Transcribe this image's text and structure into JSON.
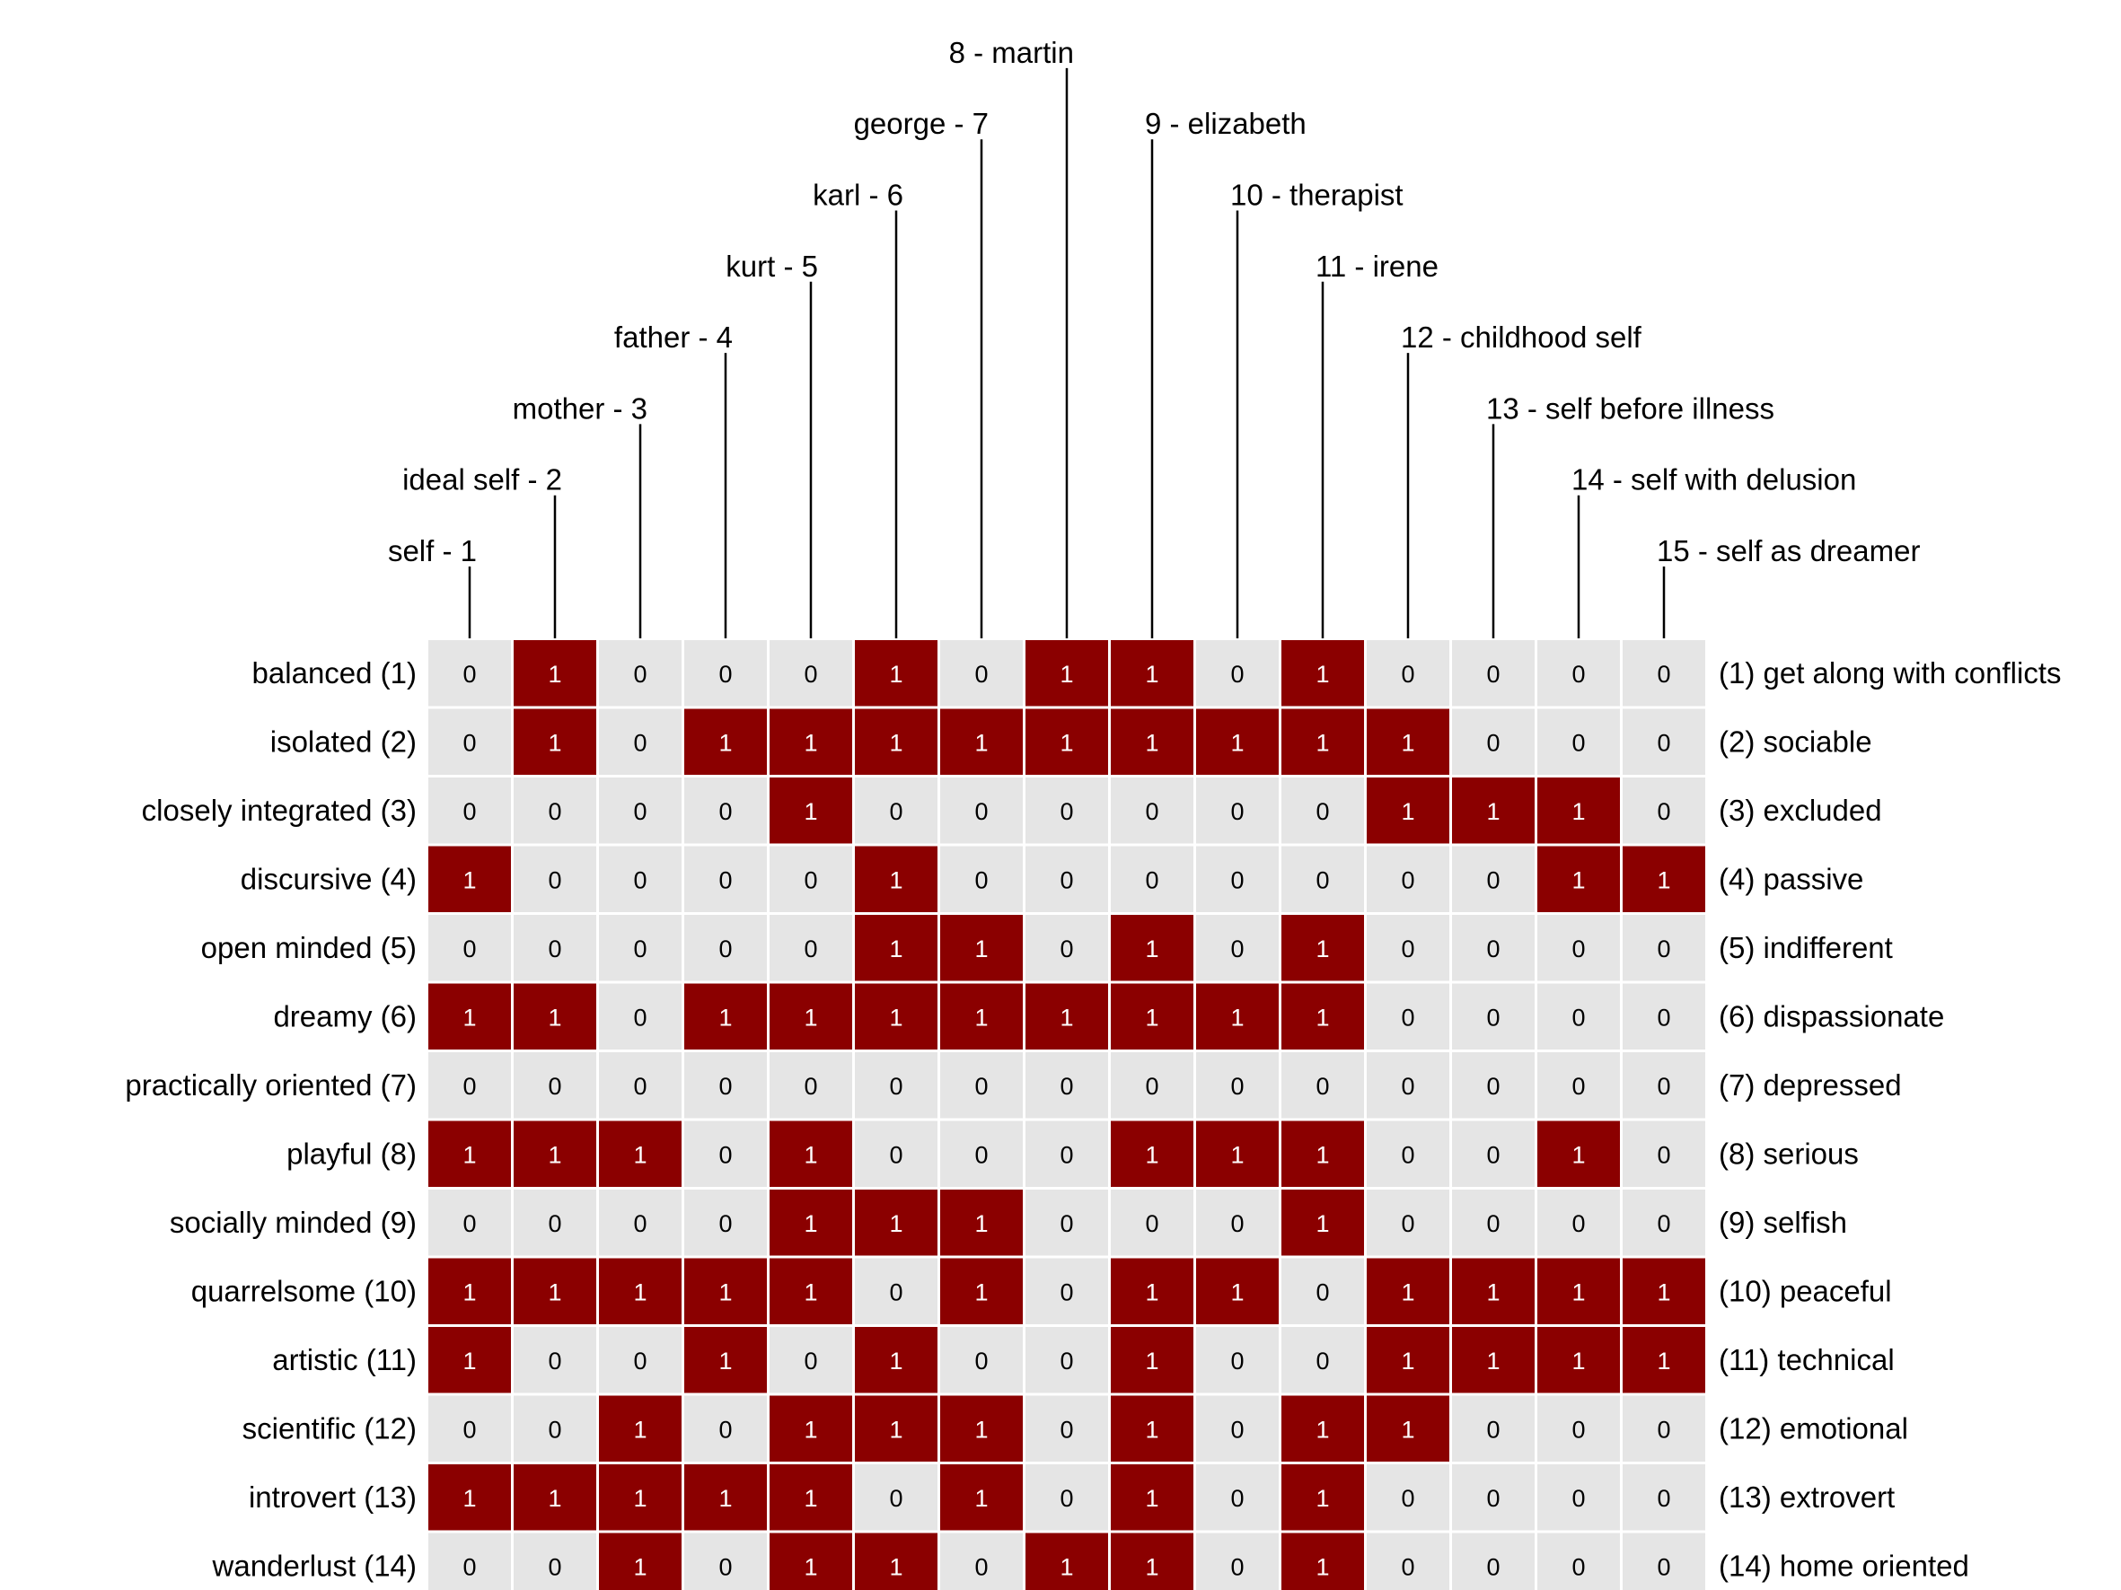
{
  "colors": {
    "one": "#8b0000",
    "zero": "#e5e5e5",
    "text_on_one": "#ffffff",
    "text_on_zero": "#000000",
    "leader": "#000000"
  },
  "chart_data": {
    "type": "heatmap",
    "elements": [
      "self - 1",
      "ideal self - 2",
      "mother - 3",
      "father - 4",
      "kurt - 5",
      "karl - 6",
      "george - 7",
      "8 - martin",
      "9 - elizabeth",
      "10 - therapist",
      "11 - irene",
      "12 - childhood self",
      "13 - self before illness",
      "14 - self with delusion",
      "15 - self as dreamer"
    ],
    "left_poles": [
      "balanced (1)",
      "isolated (2)",
      "closely integrated (3)",
      "discursive (4)",
      "open minded (5)",
      "dreamy (6)",
      "practically oriented (7)",
      "playful (8)",
      "socially minded (9)",
      "quarrelsome (10)",
      "artistic (11)",
      "scientific (12)",
      "introvert (13)",
      "wanderlust (14)"
    ],
    "right_poles": [
      "(1) get along with conflicts",
      "(2) sociable",
      "(3) excluded",
      "(4) passive",
      "(5) indifferent",
      "(6) dispassionate",
      "(7) depressed",
      "(8) serious",
      "(9) selfish",
      "(10) peaceful",
      "(11) technical",
      "(12) emotional",
      "(13) extrovert",
      "(14) home oriented"
    ],
    "values": [
      [
        0,
        1,
        0,
        0,
        0,
        1,
        0,
        1,
        1,
        0,
        1,
        0,
        0,
        0,
        0
      ],
      [
        0,
        1,
        0,
        1,
        1,
        1,
        1,
        1,
        1,
        1,
        1,
        1,
        0,
        0,
        0
      ],
      [
        0,
        0,
        0,
        0,
        1,
        0,
        0,
        0,
        0,
        0,
        0,
        1,
        1,
        1,
        0
      ],
      [
        1,
        0,
        0,
        0,
        0,
        1,
        0,
        0,
        0,
        0,
        0,
        0,
        0,
        1,
        1
      ],
      [
        0,
        0,
        0,
        0,
        0,
        1,
        1,
        0,
        1,
        0,
        1,
        0,
        0,
        0,
        0
      ],
      [
        1,
        1,
        0,
        1,
        1,
        1,
        1,
        1,
        1,
        1,
        1,
        0,
        0,
        0,
        0
      ],
      [
        0,
        0,
        0,
        0,
        0,
        0,
        0,
        0,
        0,
        0,
        0,
        0,
        0,
        0,
        0
      ],
      [
        1,
        1,
        1,
        0,
        1,
        0,
        0,
        0,
        1,
        1,
        1,
        0,
        0,
        1,
        0
      ],
      [
        0,
        0,
        0,
        0,
        1,
        1,
        1,
        0,
        0,
        0,
        1,
        0,
        0,
        0,
        0
      ],
      [
        1,
        1,
        1,
        1,
        1,
        0,
        1,
        0,
        1,
        1,
        0,
        1,
        1,
        1,
        1
      ],
      [
        1,
        0,
        0,
        1,
        0,
        1,
        0,
        0,
        1,
        0,
        0,
        1,
        1,
        1,
        1
      ],
      [
        0,
        0,
        1,
        0,
        1,
        1,
        1,
        0,
        1,
        0,
        1,
        1,
        0,
        0,
        0
      ],
      [
        1,
        1,
        1,
        1,
        1,
        0,
        1,
        0,
        1,
        0,
        1,
        0,
        0,
        0,
        0
      ],
      [
        0,
        0,
        1,
        0,
        1,
        1,
        0,
        1,
        1,
        0,
        1,
        0,
        0,
        0,
        0
      ]
    ]
  }
}
